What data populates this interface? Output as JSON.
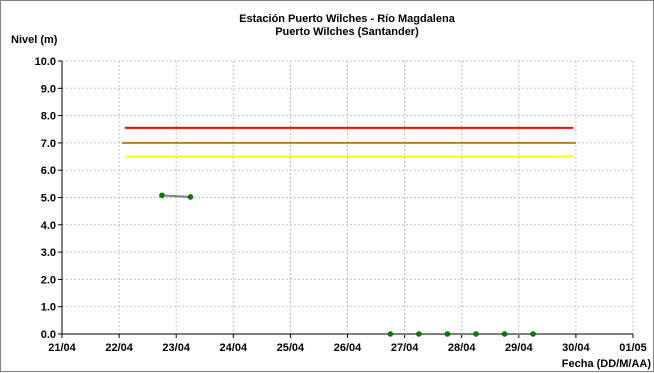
{
  "chart_data": {
    "type": "line",
    "title": "Estación Puerto Wilches - Río Magdalena",
    "subtitle": "Puerto Wilches (Santander)",
    "ylabel": "Nivel (m)",
    "xlabel": "Fecha (DD/M/AA)",
    "ylim": [
      0,
      10
    ],
    "xlim": [
      0,
      10
    ],
    "grid": true,
    "y_ticks": [
      "0.0",
      "1.0",
      "2.0",
      "3.0",
      "4.0",
      "5.0",
      "6.0",
      "7.0",
      "8.0",
      "9.0",
      "10.0"
    ],
    "x_ticks": [
      "21/04",
      "22/04",
      "23/04",
      "24/04",
      "25/04",
      "26/04",
      "27/04",
      "28/04",
      "29/04",
      "30/04",
      "01/05"
    ],
    "thresholds": [
      {
        "value": 7.55,
        "x_start": 1.1,
        "x_end": 8.95,
        "color": "#ff0000"
      },
      {
        "value": 7.0,
        "x_start": 1.05,
        "x_end": 9.0,
        "color": "#c07830"
      },
      {
        "value": 6.5,
        "x_start": 1.1,
        "x_end": 8.95,
        "color": "#ffff00"
      }
    ],
    "series": [
      {
        "color": "#808080",
        "marker_color": "#008000",
        "segments": [
          {
            "x": [
              1.75,
              2.25
            ],
            "y": [
              5.08,
              5.02
            ]
          },
          {
            "x": [
              5.75,
              6.25,
              6.75,
              7.25,
              7.75,
              8.25
            ],
            "y": [
              0,
              0,
              0,
              0,
              0,
              0
            ]
          }
        ]
      }
    ]
  }
}
